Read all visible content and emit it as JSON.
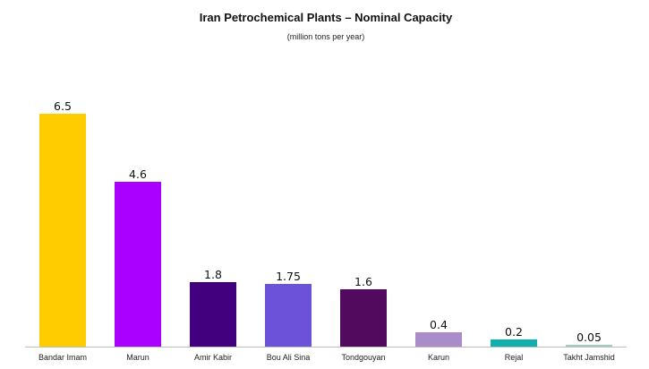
{
  "chart_data": {
    "type": "bar",
    "title": "Iran Petrochemical Plants – Nominal Capacity",
    "subtitle": "(million tons per year)",
    "xlabel": "",
    "ylabel": "",
    "ylim": [
      0,
      6.5
    ],
    "grid": false,
    "legend": "none",
    "categories": [
      "Bandar Imam",
      "Marun",
      "Amir Kabir",
      "Bou Ali Sina",
      "Tondgouyan",
      "Karun",
      "Rejal",
      "Takht Jamshid"
    ],
    "values": [
      6.5,
      4.6,
      1.8,
      1.75,
      1.6,
      0.4,
      0.2,
      0.05
    ],
    "data_labels": [
      "6.5",
      "4.6",
      "1.8",
      "1.75",
      "1.6",
      "0.4",
      "0.2",
      "0.05"
    ],
    "colors": [
      "#FFCC00",
      "#AA00FF",
      "#42007F",
      "#6B52D8",
      "#520A5E",
      "#A98CC9",
      "#12AFAF",
      "#9FD0BA"
    ],
    "axis_color": "#BDBDBD"
  }
}
